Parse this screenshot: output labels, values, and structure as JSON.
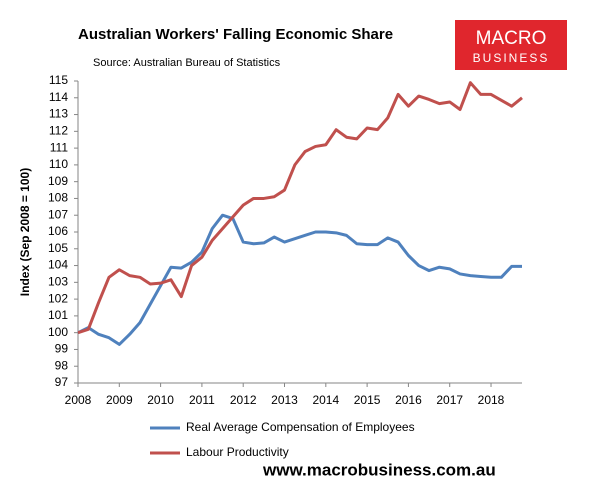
{
  "chart_data": {
    "type": "line",
    "title": "Australian Workers' Falling Economic Share",
    "subtitle": "Source: Australian Bureau of Statistics",
    "y_label": "Index (Sep 2008 = 100)",
    "x": [
      2008,
      2008.25,
      2008.5,
      2008.75,
      2009,
      2009.25,
      2009.5,
      2009.75,
      2010,
      2010.25,
      2010.5,
      2010.75,
      2011,
      2011.25,
      2011.5,
      2011.75,
      2012,
      2012.25,
      2012.5,
      2012.75,
      2013,
      2013.25,
      2013.5,
      2013.75,
      2014,
      2014.25,
      2014.5,
      2014.75,
      2015,
      2015.25,
      2015.5,
      2015.75,
      2016,
      2016.25,
      2016.5,
      2016.75,
      2017,
      2017.25,
      2017.5,
      2017.75,
      2018,
      2018.25,
      2018.5,
      2018.75
    ],
    "series": [
      {
        "name": "Real Average Compensation of Employees",
        "color": "#4f81bd",
        "values": [
          100.0,
          100.3,
          99.9,
          99.7,
          99.3,
          99.9,
          100.6,
          101.7,
          102.8,
          103.9,
          103.85,
          104.2,
          104.8,
          106.2,
          107.0,
          106.8,
          105.4,
          105.3,
          105.35,
          105.7,
          105.4,
          105.6,
          105.8,
          106.0,
          106.0,
          105.95,
          105.8,
          105.3,
          105.25,
          105.25,
          105.65,
          105.4,
          104.6,
          104.0,
          103.7,
          103.9,
          103.8,
          103.5,
          103.4,
          103.35,
          103.3,
          103.3,
          103.95,
          103.95
        ]
      },
      {
        "name": "Labour Productivity",
        "color": "#c0504d",
        "values": [
          100.0,
          100.2,
          101.8,
          103.3,
          103.75,
          103.4,
          103.3,
          102.9,
          102.95,
          103.15,
          102.15,
          104.0,
          104.5,
          105.5,
          106.2,
          106.9,
          107.6,
          108.0,
          108.0,
          108.1,
          108.5,
          110.0,
          110.8,
          111.1,
          111.2,
          112.1,
          111.65,
          111.55,
          112.2,
          112.1,
          112.8,
          114.2,
          113.5,
          114.1,
          113.9,
          113.65,
          113.75,
          113.3,
          114.9,
          114.2,
          114.2,
          113.85,
          113.5,
          114.0
        ]
      }
    ],
    "xlim": [
      2008,
      2018.75
    ],
    "xticks": [
      2008,
      2009,
      2010,
      2011,
      2012,
      2013,
      2014,
      2015,
      2016,
      2017,
      2018
    ],
    "ylim": [
      97,
      115
    ],
    "yticks": [
      97,
      98,
      99,
      100,
      101,
      102,
      103,
      104,
      105,
      106,
      107,
      108,
      109,
      110,
      111,
      112,
      113,
      114,
      115
    ],
    "grid": false,
    "legend": "bottom"
  },
  "logo": {
    "line1": "MACRO",
    "line2": "BUSINESS"
  },
  "footer": "www.macrobusiness.com.au"
}
